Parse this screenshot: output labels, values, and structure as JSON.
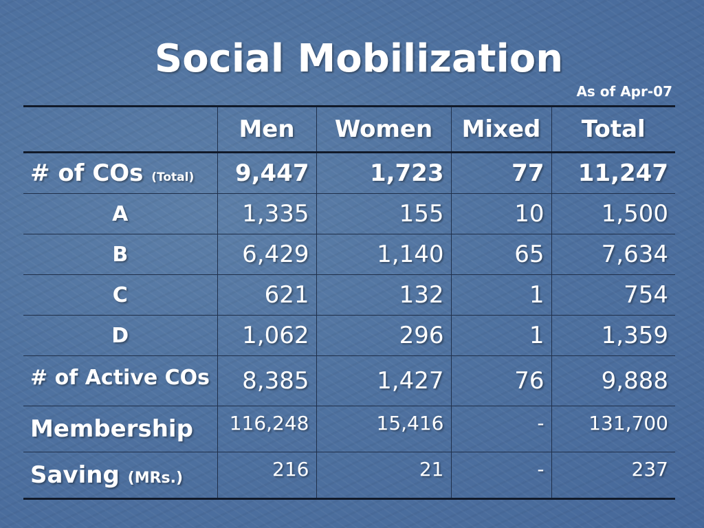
{
  "slide": {
    "title": "Social Mobilization",
    "as_of": "As of Apr-07"
  },
  "table": {
    "headers": [
      "",
      "Men",
      "Women",
      "Mixed",
      "Total"
    ],
    "rows": [
      {
        "label": "# of COs",
        "label_suffix": "(Total)",
        "values": [
          "9,447",
          "1,723",
          "77",
          "11,247"
        ]
      },
      {
        "label": "A",
        "values": [
          "1,335",
          "155",
          "10",
          "1,500"
        ]
      },
      {
        "label": "B",
        "values": [
          "6,429",
          "1,140",
          "65",
          "7,634"
        ]
      },
      {
        "label": "C",
        "values": [
          "621",
          "132",
          "1",
          "754"
        ]
      },
      {
        "label": "D",
        "values": [
          "1,062",
          "296",
          "1",
          "1,359"
        ]
      },
      {
        "label": "# of Active COs",
        "values": [
          "8,385",
          "1,427",
          "76",
          "9,888"
        ]
      },
      {
        "label": "Membership",
        "values": [
          "116,248",
          "15,416",
          "-",
          "131,700"
        ]
      },
      {
        "label": "Saving",
        "label_suffix": "(MRs.)",
        "values": [
          "216",
          "21",
          "-",
          "237"
        ]
      }
    ]
  },
  "colors": {
    "background": "#4f72a0",
    "text": "#ffffff",
    "rule": "#111a2a"
  }
}
